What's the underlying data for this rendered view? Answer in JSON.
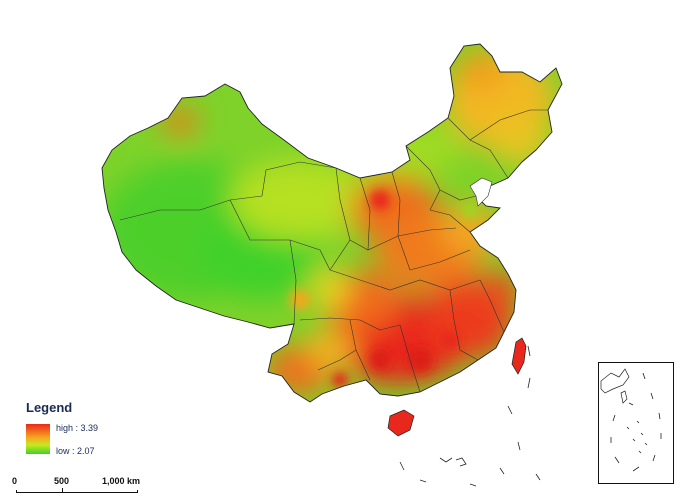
{
  "legend": {
    "title": "Legend",
    "high_label": "high : 3.39",
    "low_label": "low : 2.07",
    "high_value": 3.39,
    "low_value": 2.07,
    "colors": {
      "high": "#e8281c",
      "mid": "#f7a61e",
      "low": "#3fd12a"
    }
  },
  "scale_bar": {
    "labels": [
      "0",
      "500",
      "1,000 km"
    ],
    "values_km": [
      0,
      500,
      1000
    ]
  },
  "inset": {
    "present": true
  }
}
